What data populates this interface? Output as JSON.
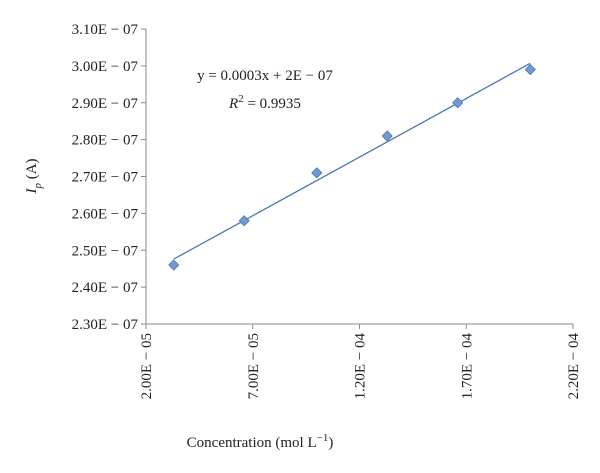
{
  "chart_data": {
    "type": "scatter",
    "x": [
      3.3e-05,
      6.6e-05,
      0.0001,
      0.000133,
      0.000166,
      0.0002
    ],
    "values": [
      2.46e-07,
      2.58e-07,
      2.71e-07,
      2.81e-07,
      2.9e-07,
      2.99e-07
    ],
    "color": "#6f9bd4",
    "trendline": {
      "x": [
        3.3e-05,
        0.0002
      ],
      "values": [
        2.476e-07,
        3.007e-07
      ],
      "color": "#4a78b0"
    },
    "xlim": [
      2e-05,
      0.00022
    ],
    "xticks": [
      {
        "value": 2e-05,
        "label": "2.00E − 05"
      },
      {
        "value": 7e-05,
        "label": "7.00E − 05"
      },
      {
        "value": 0.00012,
        "label": "1.20E − 04"
      },
      {
        "value": 0.00017,
        "label": "1.70E − 04"
      },
      {
        "value": 0.00022,
        "label": "2.20E − 04"
      }
    ],
    "ylim": [
      2.3e-07,
      3.1e-07
    ],
    "yticks": [
      {
        "value": 2.3e-07,
        "label": "2.30E − 07"
      },
      {
        "value": 2.4e-07,
        "label": "2.40E − 07"
      },
      {
        "value": 2.5e-07,
        "label": "2.50E − 07"
      },
      {
        "value": 2.6e-07,
        "label": "2.60E − 07"
      },
      {
        "value": 2.7e-07,
        "label": "2.70E − 07"
      },
      {
        "value": 2.8e-07,
        "label": "2.80E − 07"
      },
      {
        "value": 2.9e-07,
        "label": "2.90E − 07"
      },
      {
        "value": 3e-07,
        "label": "3.00E − 07"
      },
      {
        "value": 3.1e-07,
        "label": "3.10E − 07"
      }
    ],
    "x_label": [
      "Concentration (mol L",
      "−1",
      ")"
    ],
    "y_label": [
      "I",
      "p",
      " (A)"
    ],
    "equation": "y = 0.0003x + 2E − 07",
    "r_squared": [
      "R",
      "2",
      " = 0.9935"
    ]
  }
}
